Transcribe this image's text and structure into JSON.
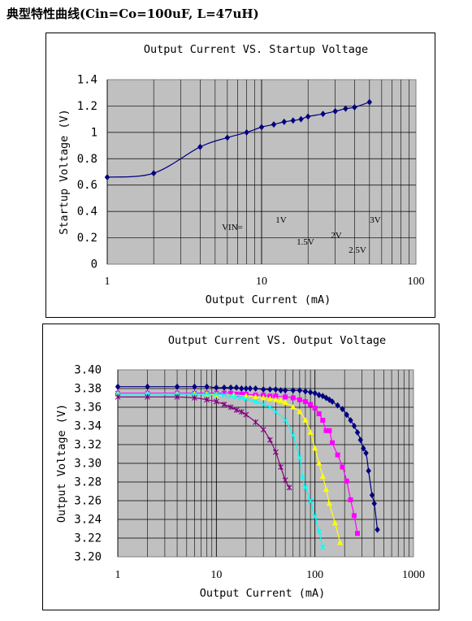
{
  "heading": "典型特性曲线(Cin=Co=100uF, L=47uH)",
  "chart_data": [
    {
      "type": "line",
      "title": "Output Current VS. Startup Voltage",
      "xlabel": "Output Current (mA)",
      "ylabel": "Startup Voltage (V)",
      "x_scale": "log",
      "xlim": [
        1,
        100
      ],
      "ylim": [
        0,
        1.4
      ],
      "x_ticks": [
        "1",
        "10",
        "100"
      ],
      "y_ticks": [
        "0",
        "0.2",
        "0.4",
        "0.6",
        "0.8",
        "1",
        "1.2",
        "1.4"
      ],
      "grid": true,
      "background": "#c0c0c0",
      "annotations": [
        "VIN=",
        "1V",
        "1.5V",
        "2V",
        "2.5V",
        "3V"
      ],
      "series": [
        {
          "color": "#000080",
          "marker": "diamond",
          "x": [
            1,
            2,
            4,
            6,
            8,
            10,
            12,
            14,
            16,
            18,
            20,
            25,
            30,
            35,
            40,
            50
          ],
          "y": [
            0.66,
            0.69,
            0.89,
            0.96,
            1.0,
            1.04,
            1.06,
            1.08,
            1.09,
            1.1,
            1.12,
            1.14,
            1.16,
            1.18,
            1.19,
            1.23
          ]
        }
      ]
    },
    {
      "type": "line",
      "title": "Output Current VS. Output Voltage",
      "xlabel": "Output Current (mA)",
      "ylabel": "Output Voltage (V)",
      "x_scale": "log",
      "xlim": [
        1,
        1000
      ],
      "ylim": [
        3.2,
        3.4
      ],
      "x_ticks": [
        "1",
        "10",
        "100",
        "1000"
      ],
      "y_ticks": [
        "3.20",
        "3.22",
        "3.24",
        "3.26",
        "3.28",
        "3.30",
        "3.32",
        "3.34",
        "3.36",
        "3.38",
        "3.40"
      ],
      "grid": true,
      "background": "#c0c0c0",
      "series": [
        {
          "color": "#000080",
          "marker": "diamond",
          "x": [
            1,
            2,
            4,
            6,
            8,
            10,
            12,
            14,
            16,
            18,
            20,
            22,
            25,
            30,
            35,
            40,
            45,
            50,
            60,
            70,
            80,
            90,
            100,
            110,
            120,
            130,
            140,
            150,
            170,
            190,
            210,
            230,
            250,
            270,
            290,
            310,
            330,
            350,
            380,
            400,
            430
          ],
          "y": [
            3.382,
            3.382,
            3.382,
            3.382,
            3.382,
            3.381,
            3.381,
            3.381,
            3.381,
            3.38,
            3.38,
            3.38,
            3.38,
            3.379,
            3.379,
            3.379,
            3.378,
            3.378,
            3.378,
            3.378,
            3.377,
            3.376,
            3.375,
            3.373,
            3.372,
            3.37,
            3.368,
            3.366,
            3.362,
            3.358,
            3.352,
            3.346,
            3.34,
            3.333,
            3.325,
            3.316,
            3.311,
            3.292,
            3.266,
            3.257,
            3.229
          ]
        },
        {
          "color": "#ff00ff",
          "marker": "square",
          "x": [
            1,
            2,
            4,
            6,
            8,
            10,
            12,
            14,
            16,
            18,
            20,
            25,
            30,
            35,
            40,
            50,
            60,
            70,
            80,
            90,
            100,
            110,
            120,
            130,
            140,
            150,
            170,
            190,
            210,
            230,
            250,
            270
          ],
          "y": [
            3.375,
            3.375,
            3.375,
            3.375,
            3.375,
            3.375,
            3.375,
            3.375,
            3.374,
            3.374,
            3.374,
            3.373,
            3.373,
            3.372,
            3.372,
            3.371,
            3.37,
            3.368,
            3.366,
            3.363,
            3.359,
            3.353,
            3.346,
            3.335,
            3.335,
            3.322,
            3.309,
            3.296,
            3.281,
            3.261,
            3.244,
            3.225
          ]
        },
        {
          "color": "#ffff00",
          "marker": "triangle",
          "x": [
            1,
            2,
            4,
            6,
            8,
            10,
            15,
            20,
            25,
            30,
            35,
            40,
            45,
            50,
            60,
            70,
            80,
            90,
            100,
            110,
            120,
            130,
            140,
            160,
            180
          ],
          "y": [
            3.374,
            3.374,
            3.374,
            3.374,
            3.374,
            3.373,
            3.373,
            3.372,
            3.371,
            3.37,
            3.369,
            3.368,
            3.367,
            3.365,
            3.36,
            3.355,
            3.346,
            3.333,
            3.316,
            3.3,
            3.286,
            3.272,
            3.257,
            3.236,
            3.215
          ]
        },
        {
          "color": "#00ffff",
          "marker": "x",
          "x": [
            1,
            2,
            4,
            6,
            8,
            10,
            12,
            14,
            16,
            18,
            20,
            25,
            30,
            35,
            40,
            50,
            60,
            70,
            75,
            80,
            90,
            100,
            110,
            120
          ],
          "y": [
            3.374,
            3.374,
            3.374,
            3.374,
            3.374,
            3.374,
            3.373,
            3.372,
            3.371,
            3.37,
            3.369,
            3.366,
            3.363,
            3.36,
            3.355,
            3.346,
            3.33,
            3.306,
            3.285,
            3.274,
            3.26,
            3.243,
            3.227,
            3.21
          ]
        },
        {
          "color": "#800080",
          "marker": "star",
          "x": [
            1,
            2,
            4,
            6,
            8,
            10,
            12,
            14,
            16,
            18,
            20,
            25,
            30,
            35,
            40,
            45,
            50,
            55
          ],
          "y": [
            3.371,
            3.371,
            3.371,
            3.37,
            3.368,
            3.366,
            3.363,
            3.36,
            3.357,
            3.355,
            3.352,
            3.344,
            3.336,
            3.325,
            3.312,
            3.296,
            3.282,
            3.274
          ]
        }
      ]
    }
  ]
}
